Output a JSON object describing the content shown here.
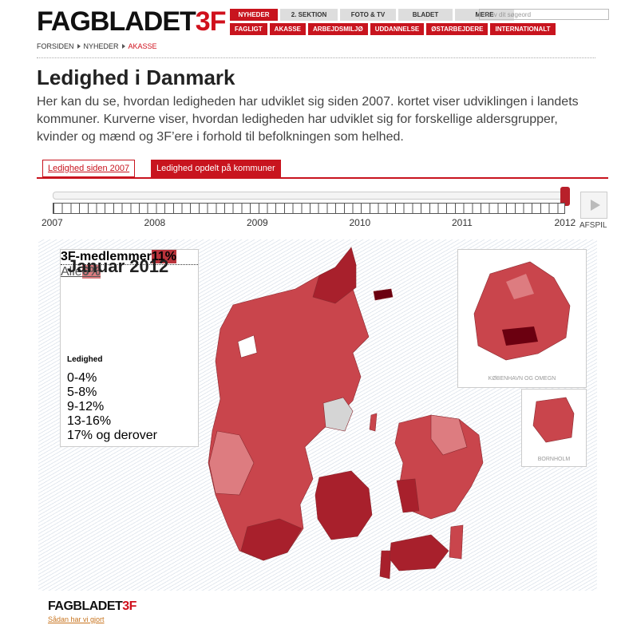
{
  "header": {
    "logo": "FAGBLADET",
    "logo_suffix": "3F",
    "nav_top": [
      "NYHEDER",
      "2. SEKTION",
      "FOTO & TV",
      "BLADET",
      "MERE"
    ],
    "search_placeholder": "Skriv dit søgeord",
    "nav_bottom": [
      "FAGLIGT",
      "AKASSE",
      "ARBEJDSMILJØ",
      "UDDANNELSE",
      "ØSTARBEJDERE",
      "INTERNATIONALT"
    ]
  },
  "breadcrumb": [
    "FORSIDEN",
    "NYHEDER",
    "AKASSE"
  ],
  "page": {
    "title": "Ledighed i Danmark",
    "intro": "Her kan du se, hvordan ledigheden har udviklet sig siden 2007. kortet viser udviklingen i landets kommuner. Kurverne viser, hvordan ledigheden har udviklet sig for forskellige aldersgrupper, kvinder og mænd og 3F’ere i forhold til befolkningen som helhed."
  },
  "tabs": [
    "Ledighed siden 2007",
    "Ledighed opdelt på kommuner"
  ],
  "timeline": {
    "years": [
      "2007",
      "2008",
      "2009",
      "2010",
      "2011",
      "2012"
    ],
    "play_label": "AFSPIL"
  },
  "panel": {
    "title": "Januar 2012",
    "rows": [
      {
        "label": "3F-medlemmer",
        "value": "11%",
        "color": "#b8333b"
      },
      {
        "label": "Alle",
        "value": "6%",
        "color": "#dd7c80"
      }
    ],
    "legend_title": "Ledighed",
    "legend": [
      {
        "label": "0-4%",
        "color": "#f2c6c8"
      },
      {
        "label": "5-8%",
        "color": "#dd7c80"
      },
      {
        "label": "9-12%",
        "color": "#c9454c"
      },
      {
        "label": "13-16%",
        "color": "#a8202c"
      },
      {
        "label": "17% og derover",
        "color": "#6b0010"
      }
    ]
  },
  "insets": [
    "KØBENHAVN OG OMEGN",
    "BORNHOLM"
  ],
  "footer": {
    "logo": "FAGBLADET",
    "logo_suffix": "3F",
    "link": "Sådan har vi gjort"
  }
}
